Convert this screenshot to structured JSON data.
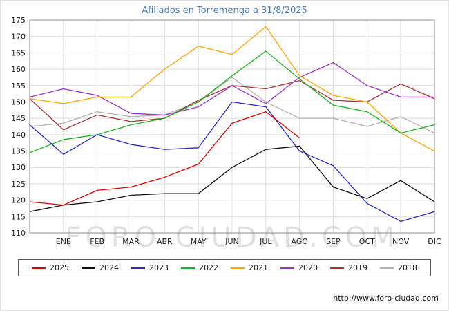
{
  "title": "Afiliados en Torremenga a 31/8/2025",
  "watermark": "FORO-CIUDAD.COM",
  "footer": {
    "url": "http://www.foro-ciudad.com"
  },
  "chart_data": {
    "type": "line",
    "title": "Afiliados en Torremenga a 31/8/2025",
    "categories": [
      "ENE",
      "FEB",
      "MAR",
      "ABR",
      "MAY",
      "JUN",
      "JUL",
      "AGO",
      "SEP",
      "OCT",
      "NOV",
      "DIC"
    ],
    "ylim": [
      110,
      175
    ],
    "ytick_step": 5,
    "grid": true,
    "legend_position": "bottom",
    "colors": {
      "title": "#4a7ebd",
      "grid": "#dcdcdc",
      "plot_border": "#8c8c8c",
      "watermark": "#cfcfcf"
    },
    "series": [
      {
        "name": "2025",
        "color": "#e60000",
        "start": 119.5,
        "values": [
          118.5,
          123,
          124,
          127,
          131,
          143.5,
          147,
          139,
          null,
          null,
          null,
          null
        ]
      },
      {
        "name": "2024",
        "color": "#101010",
        "start": 116.5,
        "values": [
          118.5,
          119.5,
          121.5,
          122,
          122,
          130,
          135.5,
          136.5,
          124,
          120.5,
          126,
          119.5
        ]
      },
      {
        "name": "2023",
        "color": "#2929c8",
        "start": 143,
        "values": [
          134,
          140,
          137,
          135.5,
          136,
          150,
          148.5,
          135,
          130.5,
          119,
          113.5,
          116.5
        ]
      },
      {
        "name": "2022",
        "color": "#1db51d",
        "start": 134.5,
        "values": [
          138.5,
          140,
          143,
          145,
          150,
          158,
          165.5,
          157,
          149,
          147,
          140.5,
          143
        ]
      },
      {
        "name": "2021",
        "color": "#ffa500",
        "start": 151,
        "values": [
          149.5,
          151.5,
          151.5,
          160,
          167,
          164.5,
          173,
          158,
          152,
          150,
          140.5,
          135
        ]
      },
      {
        "name": "2020",
        "color": "#9933cc",
        "start": 151.5,
        "values": [
          154,
          152,
          146.5,
          146,
          148.5,
          155,
          149.5,
          157.5,
          162,
          155,
          151.5,
          151.5
        ]
      },
      {
        "name": "2019",
        "color": "#aa3333",
        "start": 151,
        "values": [
          141.5,
          146,
          144,
          145,
          150.5,
          155,
          154,
          156.5,
          150.5,
          150,
          155.5,
          151
        ]
      },
      {
        "name": "2018",
        "color": "#b3b3b3",
        "start": 142.5,
        "values": [
          143.5,
          147,
          145.5,
          146,
          150,
          157.5,
          150,
          145,
          145,
          142.5,
          145.5,
          140.5
        ]
      }
    ]
  }
}
